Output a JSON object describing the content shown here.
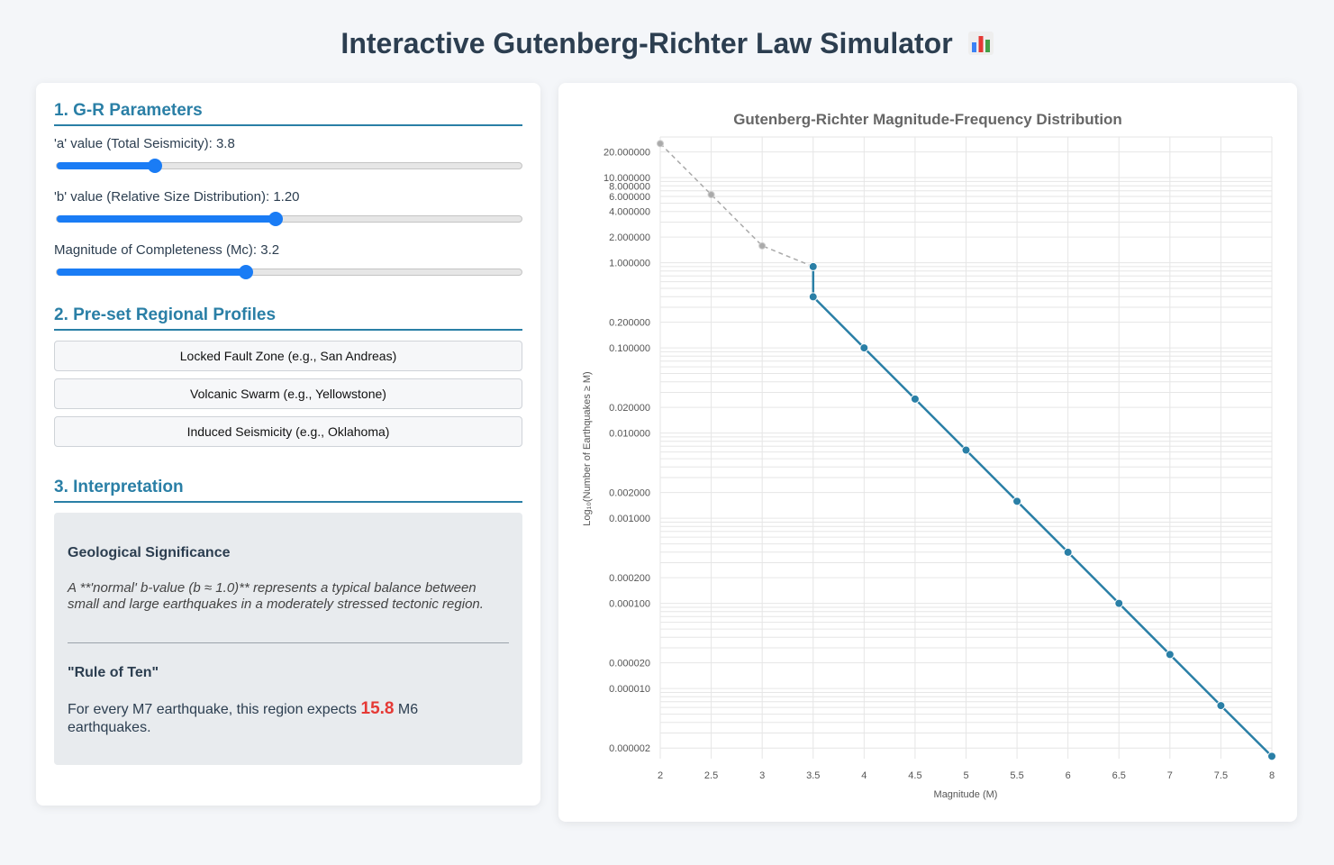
{
  "page_title": "Interactive Gutenberg-Richter Law Simulator",
  "title_icon": "bar-chart-icon",
  "sections": {
    "params_heading": "1. G-R Parameters",
    "profiles_heading": "2. Pre-set Regional Profiles",
    "interp_heading": "3. Interpretation"
  },
  "params": {
    "a": {
      "label": "'a' value (Total Seismicity): 3.8",
      "fraction": 0.212
    },
    "b": {
      "label": "'b' value (Relative Size Distribution): 1.20",
      "fraction": 0.47
    },
    "mc": {
      "label": "Magnitude of Completeness (Mc): 3.2",
      "fraction": 0.407
    }
  },
  "profiles": [
    "Locked Fault Zone (e.g., San Andreas)",
    "Volcanic Swarm (e.g., Yellowstone)",
    "Induced Seismicity (e.g., Oklahoma)"
  ],
  "interpretation": {
    "geo_heading": "Geological Significance",
    "geo_text": "A **'normal' b-value (b ≈ 1.0)** represents a typical balance between small and large earthquakes in a moderately stressed tectonic region.",
    "rule_heading": "\"Rule of Ten\"",
    "rule_prefix": "For every M7 earthquake, this region expects ",
    "rule_value": "15.8",
    "rule_suffix": " M6 earthquakes."
  },
  "colors": {
    "accent": "#2a7fa6",
    "slider": "#1a7cf5",
    "line": "#2a7fa6",
    "incomplete": "#aaaaaa",
    "highlight": "#e53935"
  },
  "chart_data": {
    "type": "line",
    "title": "Gutenberg-Richter Magnitude-Frequency Distribution",
    "xlabel": "Magnitude (M)",
    "ylabel": "Log₁₀(Number of Earthquakes ≥ M)",
    "y_scale": "log",
    "xlim": [
      2,
      8
    ],
    "ylim": [
      1.5e-06,
      30
    ],
    "grid": true,
    "x_ticks": [
      "2",
      "2.5",
      "3",
      "3.5",
      "4",
      "4.5",
      "5",
      "5.5",
      "6",
      "6.5",
      "7",
      "7.5",
      "8"
    ],
    "y_ticks": [
      {
        "value": 20,
        "label": "20.000000"
      },
      {
        "value": 10,
        "label": "10.000000"
      },
      {
        "value": 8,
        "label": "8.000000"
      },
      {
        "value": 6,
        "label": "6.000000"
      },
      {
        "value": 4,
        "label": "4.000000"
      },
      {
        "value": 2,
        "label": "2.000000"
      },
      {
        "value": 1,
        "label": "1.000000"
      },
      {
        "value": 0.2,
        "label": "0.200000"
      },
      {
        "value": 0.1,
        "label": "0.100000"
      },
      {
        "value": 0.02,
        "label": "0.020000"
      },
      {
        "value": 0.01,
        "label": "0.010000"
      },
      {
        "value": 0.002,
        "label": "0.002000"
      },
      {
        "value": 0.001,
        "label": "0.001000"
      },
      {
        "value": 0.0002,
        "label": "0.000200"
      },
      {
        "value": 0.0001,
        "label": "0.000100"
      },
      {
        "value": 2e-05,
        "label": "0.000020"
      },
      {
        "value": 1e-05,
        "label": "0.000010"
      },
      {
        "value": 2e-06,
        "label": "0.000002"
      }
    ],
    "series": [
      {
        "style": "dashed",
        "color": "#aaaaaa",
        "x": [
          2,
          2.5,
          3,
          3.5
        ],
        "y": [
          25.1,
          6.31,
          1.58,
          0.9
        ]
      },
      {
        "style": "solid",
        "color": "#2a7fa6",
        "x": [
          3.5,
          3.5,
          4,
          4.5,
          5,
          5.5,
          6,
          6.5,
          7,
          7.5,
          8
        ],
        "y": [
          0.9,
          0.398,
          0.1,
          0.0251,
          0.00631,
          0.00158,
          0.000398,
          0.0001,
          2.51e-05,
          6.3e-06,
          1.6e-06
        ]
      }
    ]
  }
}
